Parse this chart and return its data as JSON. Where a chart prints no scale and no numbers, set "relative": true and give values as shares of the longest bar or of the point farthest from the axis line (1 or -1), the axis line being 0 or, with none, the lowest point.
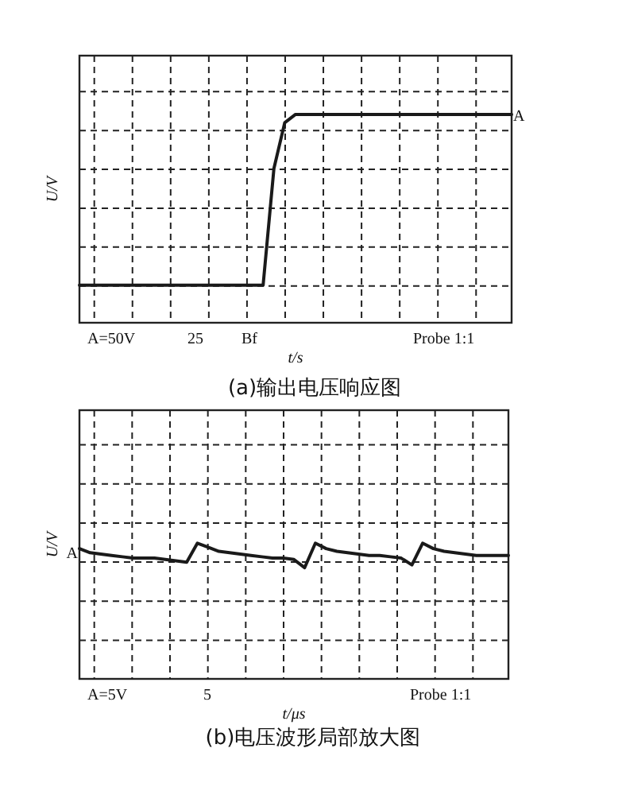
{
  "chart_data": [
    {
      "type": "line",
      "relative": true,
      "title": "(a)输出电压响应图",
      "xlabel": "t/s",
      "ylabel": "U/V",
      "grid": true,
      "marker": "none",
      "line_style": "solid",
      "annotations": [
        "A=50V",
        "25",
        "Bf",
        "Probe 1:1",
        "A"
      ],
      "categories": [
        null,
        null,
        null,
        null,
        null,
        null,
        null,
        null,
        null,
        null,
        null,
        null,
        null,
        null,
        null,
        null,
        null,
        null,
        null,
        null,
        null,
        null,
        null,
        null,
        null,
        null,
        null,
        null,
        null,
        null,
        null,
        null,
        null,
        null,
        null,
        null,
        null,
        null,
        null,
        null,
        null
      ],
      "series": [
        {
          "color": "#1a1a1a",
          "values": [
            0.18,
            0.18,
            0.18,
            0.18,
            0.18,
            0.18,
            0.18,
            0.18,
            0.18,
            0.18,
            0.18,
            0.18,
            0.18,
            0.18,
            0.18,
            0.18,
            0.18,
            0.18,
            0.74,
            0.96,
            1,
            1,
            1,
            1,
            1,
            1,
            1,
            1,
            1,
            1,
            1,
            1,
            1,
            1,
            1,
            1,
            1,
            1,
            1,
            1,
            1
          ]
        }
      ]
    },
    {
      "type": "line",
      "relative": true,
      "title": "(b)电压波形局部放大图",
      "xlabel": "t/μs",
      "ylabel": "U/V",
      "grid": true,
      "marker": "none",
      "line_style": "solid",
      "annotations": [
        "A=5V",
        "5",
        "Probe 1:1",
        "A"
      ],
      "categories": [
        null,
        null,
        null,
        null,
        null,
        null,
        null,
        null,
        null,
        null,
        null,
        null,
        null,
        null,
        null,
        null,
        null,
        null,
        null,
        null,
        null,
        null,
        null,
        null,
        null,
        null,
        null,
        null,
        null,
        null,
        null,
        null,
        null,
        null,
        null,
        null,
        null,
        null,
        null,
        null,
        null
      ],
      "series": [
        {
          "color": "#1a1a1a",
          "values": [
            0.96,
            0.93,
            0.92,
            0.91,
            0.9,
            0.89,
            0.89,
            0.89,
            0.88,
            0.87,
            0.86,
            1,
            0.97,
            0.94,
            0.93,
            0.92,
            0.91,
            0.9,
            0.89,
            0.89,
            0.88,
            0.82,
            1,
            0.96,
            0.94,
            0.93,
            0.92,
            0.91,
            0.91,
            0.9,
            0.89,
            0.84,
            1,
            0.96,
            0.94,
            0.93,
            0.92,
            0.91,
            0.91,
            0.91,
            0.91
          ]
        }
      ]
    }
  ]
}
